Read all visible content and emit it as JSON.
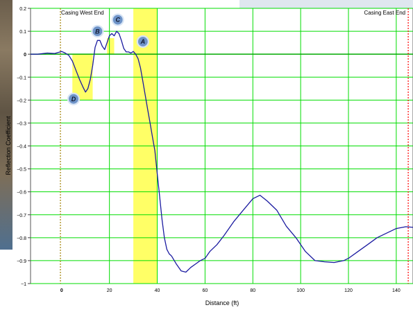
{
  "chart_data": {
    "type": "line",
    "xlabel": "Distance (ft)",
    "ylabel": "Reflection Coefficient",
    "xlim": [
      -13,
      147
    ],
    "ylim": [
      -1,
      0.2
    ],
    "x_ticks": [
      0,
      20,
      40,
      60,
      80,
      100,
      120,
      140
    ],
    "y_ticks": [
      0.2,
      0.1,
      0,
      -0.1,
      -0.2,
      -0.3,
      -0.4,
      -0.5,
      -0.6,
      -0.7,
      -0.8,
      -0.9,
      -1
    ],
    "x_tick_labels": [
      "0",
      "20",
      "40",
      "60",
      "80",
      "100",
      "120",
      "140"
    ],
    "y_tick_labels": [
      "0.2",
      "0.1",
      "0",
      "−0.1",
      "−0.2",
      "−0.3",
      "−0.4",
      "−0.5",
      "−0.6",
      "−0.7",
      "−0.8",
      "−0.9",
      "−1"
    ],
    "grid": true,
    "colors": {
      "grid": "#00dd00",
      "line": "#1a1aa0",
      "highlight": "#ffff66",
      "zero_line": "#00aa00",
      "marker_west": "#a08000",
      "marker_east": "#ff0000",
      "badge": "#6e93c8"
    },
    "series": [
      {
        "x": [
          -13,
          -10,
          -6,
          -3,
          0,
          1.5,
          3,
          4.5,
          6,
          7.5,
          9,
          10,
          11,
          12,
          13,
          14,
          15,
          16,
          17,
          18,
          19,
          20,
          21,
          22,
          23,
          24,
          25,
          26,
          27,
          28,
          29,
          30,
          31,
          32,
          33,
          34,
          35,
          36,
          37,
          38,
          39,
          40,
          41,
          42,
          43,
          44,
          45,
          46,
          48,
          50,
          52,
          54,
          56,
          58,
          60,
          62,
          65,
          68,
          72,
          76,
          80,
          83,
          86,
          90,
          94,
          98,
          102,
          106,
          110,
          114,
          118,
          120,
          124,
          128,
          132,
          136,
          140,
          144,
          147
        ],
        "y": [
          0,
          0,
          0.005,
          0.003,
          0.012,
          0.005,
          -0.005,
          -0.03,
          -0.07,
          -0.11,
          -0.145,
          -0.165,
          -0.15,
          -0.11,
          -0.05,
          0.03,
          0.06,
          0.06,
          0.035,
          0.02,
          0.05,
          0.08,
          0.09,
          0.08,
          0.1,
          0.09,
          0.06,
          0.025,
          0.01,
          0.01,
          0.005,
          0.012,
          0,
          -0.02,
          -0.06,
          -0.12,
          -0.18,
          -0.24,
          -0.3,
          -0.36,
          -0.42,
          -0.52,
          -0.62,
          -0.72,
          -0.8,
          -0.85,
          -0.87,
          -0.88,
          -0.915,
          -0.945,
          -0.95,
          -0.93,
          -0.915,
          -0.9,
          -0.89,
          -0.86,
          -0.83,
          -0.79,
          -0.73,
          -0.68,
          -0.63,
          -0.615,
          -0.64,
          -0.68,
          -0.75,
          -0.8,
          -0.86,
          -0.9,
          -0.905,
          -0.908,
          -0.9,
          -0.89,
          -0.86,
          -0.83,
          -0.8,
          -0.78,
          -0.76,
          -0.752,
          -0.755
        ]
      }
    ],
    "highlight_regions": [
      {
        "x": [
          4.5,
          13
        ],
        "y": [
          0,
          -0.2
        ]
      },
      {
        "x": [
          19,
          22
        ],
        "y": [
          0.07,
          0
        ]
      },
      {
        "x": [
          30,
          40
        ],
        "y": [
          0.2,
          -1
        ]
      }
    ],
    "annotations": [
      {
        "label": "A",
        "x": 34,
        "y": 0.055
      },
      {
        "label": "B",
        "x": 15,
        "y": 0.1
      },
      {
        "label": "C",
        "x": 23.5,
        "y": 0.15
      },
      {
        "label": "D",
        "x": 5,
        "y": -0.195
      }
    ],
    "markers": [
      {
        "label": "Casing West End",
        "x": -0.5,
        "label_align": "start"
      },
      {
        "label": "Casing East End",
        "x": 145,
        "label_align": "end"
      }
    ]
  }
}
